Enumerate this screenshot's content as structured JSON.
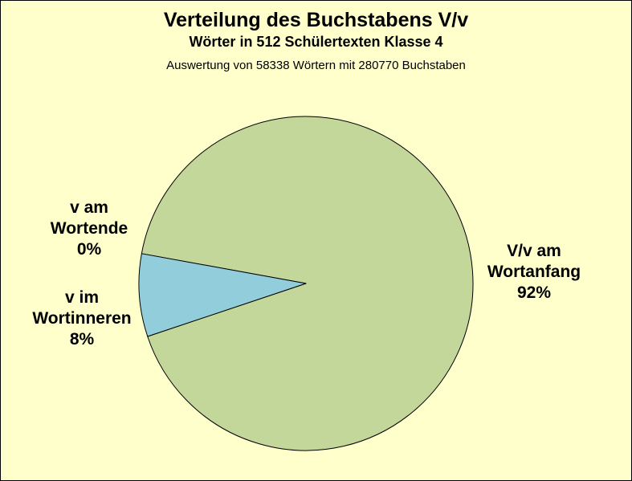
{
  "chart_data": {
    "type": "pie",
    "title": "Verteilung des Buchstabens V/v",
    "subtitle": "Wörter in 512 Schülertexten Klasse 4",
    "note": "Auswertung von 58338 Wörtern mit 280770 Buchstaben",
    "categories": [
      "V/v am Wortanfang",
      "v im Wortinneren",
      "v am Wortende"
    ],
    "values": [
      92,
      8,
      0
    ],
    "labels": [
      "92%",
      "8%",
      "0%"
    ],
    "colors": [
      "#C4D79B",
      "#92CDDC"
    ],
    "legend": "none",
    "data_labels": "outside"
  },
  "colors": {
    "background": "#FFFFCC",
    "outline": "#000000"
  }
}
